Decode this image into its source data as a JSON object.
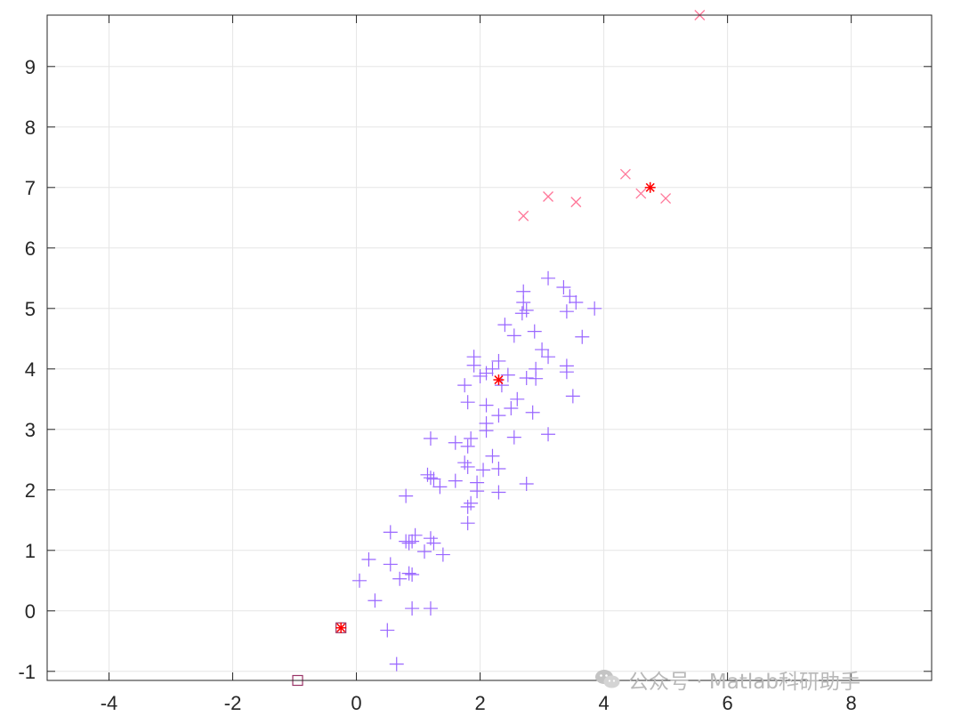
{
  "chart_data": {
    "type": "scatter",
    "title": "",
    "xlabel": "",
    "ylabel": "",
    "xlim": [
      -5,
      9.3
    ],
    "ylim": [
      -1.15,
      9.85
    ],
    "xticks": [
      -4,
      -2,
      0,
      2,
      4,
      6,
      8
    ],
    "yticks": [
      -1,
      0,
      1,
      2,
      3,
      4,
      5,
      6,
      7,
      8,
      9
    ],
    "grid": true,
    "colors": {
      "plus": "#9966ff",
      "cross": "#ff7799",
      "square": "#993366",
      "center": "#ff0000",
      "axis": "#262626",
      "grid": "#e6e6e6"
    },
    "series": [
      {
        "marker": "plus",
        "points": [
          [
            3.1,
            5.5
          ],
          [
            3.35,
            5.35
          ],
          [
            3.45,
            5.2
          ],
          [
            3.55,
            5.1
          ],
          [
            3.4,
            4.95
          ],
          [
            3.85,
            5.0
          ],
          [
            2.7,
            5.28
          ],
          [
            2.7,
            5.1
          ],
          [
            2.75,
            4.97
          ],
          [
            2.68,
            4.92
          ],
          [
            2.4,
            4.73
          ],
          [
            2.55,
            4.55
          ],
          [
            2.88,
            4.62
          ],
          [
            3.65,
            4.53
          ],
          [
            3.0,
            4.32
          ],
          [
            3.1,
            4.2
          ],
          [
            3.4,
            4.05
          ],
          [
            3.4,
            3.95
          ],
          [
            1.9,
            4.2
          ],
          [
            1.9,
            4.06
          ],
          [
            2.3,
            4.13
          ],
          [
            2.2,
            4.0
          ],
          [
            2.1,
            3.93
          ],
          [
            2.45,
            3.9
          ],
          [
            2.0,
            3.88
          ],
          [
            2.9,
            4.0
          ],
          [
            2.75,
            3.85
          ],
          [
            2.9,
            3.84
          ],
          [
            1.75,
            3.73
          ],
          [
            2.35,
            3.73
          ],
          [
            3.5,
            3.55
          ],
          [
            2.6,
            3.5
          ],
          [
            1.8,
            3.45
          ],
          [
            2.1,
            3.4
          ],
          [
            2.5,
            3.35
          ],
          [
            2.85,
            3.28
          ],
          [
            2.3,
            3.23
          ],
          [
            2.1,
            3.1
          ],
          [
            2.1,
            2.98
          ],
          [
            3.1,
            2.92
          ],
          [
            2.55,
            2.87
          ],
          [
            1.85,
            2.85
          ],
          [
            1.2,
            2.85
          ],
          [
            1.6,
            2.78
          ],
          [
            1.8,
            2.72
          ],
          [
            2.2,
            2.56
          ],
          [
            1.75,
            2.45
          ],
          [
            1.8,
            2.38
          ],
          [
            2.05,
            2.33
          ],
          [
            2.3,
            2.35
          ],
          [
            1.15,
            2.25
          ],
          [
            1.2,
            2.2
          ],
          [
            1.25,
            2.18
          ],
          [
            1.6,
            2.15
          ],
          [
            1.95,
            2.12
          ],
          [
            2.75,
            2.1
          ],
          [
            1.35,
            2.05
          ],
          [
            1.95,
            1.98
          ],
          [
            2.3,
            1.96
          ],
          [
            0.8,
            1.9
          ],
          [
            1.85,
            1.78
          ],
          [
            1.8,
            1.72
          ],
          [
            1.8,
            1.45
          ],
          [
            0.55,
            1.3
          ],
          [
            0.95,
            1.25
          ],
          [
            0.8,
            1.15
          ],
          [
            0.9,
            1.15
          ],
          [
            0.85,
            1.12
          ],
          [
            1.2,
            1.2
          ],
          [
            1.25,
            1.12
          ],
          [
            1.1,
            0.98
          ],
          [
            1.4,
            0.93
          ],
          [
            0.2,
            0.85
          ],
          [
            0.55,
            0.77
          ],
          [
            0.9,
            0.6
          ],
          [
            0.85,
            0.62
          ],
          [
            0.7,
            0.53
          ],
          [
            0.05,
            0.5
          ],
          [
            0.3,
            0.17
          ],
          [
            0.9,
            0.04
          ],
          [
            1.2,
            0.04
          ],
          [
            0.5,
            -0.32
          ],
          [
            0.65,
            -0.88
          ]
        ]
      },
      {
        "marker": "cross",
        "points": [
          [
            5.55,
            9.85
          ],
          [
            4.35,
            7.22
          ],
          [
            4.6,
            6.9
          ],
          [
            5.0,
            6.82
          ],
          [
            3.1,
            6.85
          ],
          [
            3.55,
            6.76
          ],
          [
            2.7,
            6.53
          ]
        ]
      },
      {
        "marker": "square",
        "points": [
          [
            -0.95,
            -1.15
          ],
          [
            -0.25,
            -0.28
          ]
        ]
      },
      {
        "marker": "center",
        "points": [
          [
            4.75,
            7.0
          ],
          [
            2.3,
            3.82
          ],
          [
            -0.25,
            -0.28
          ]
        ]
      }
    ]
  },
  "watermark": {
    "text": "公众号 · Matlab科研助手",
    "icon": "wechat-icon"
  }
}
